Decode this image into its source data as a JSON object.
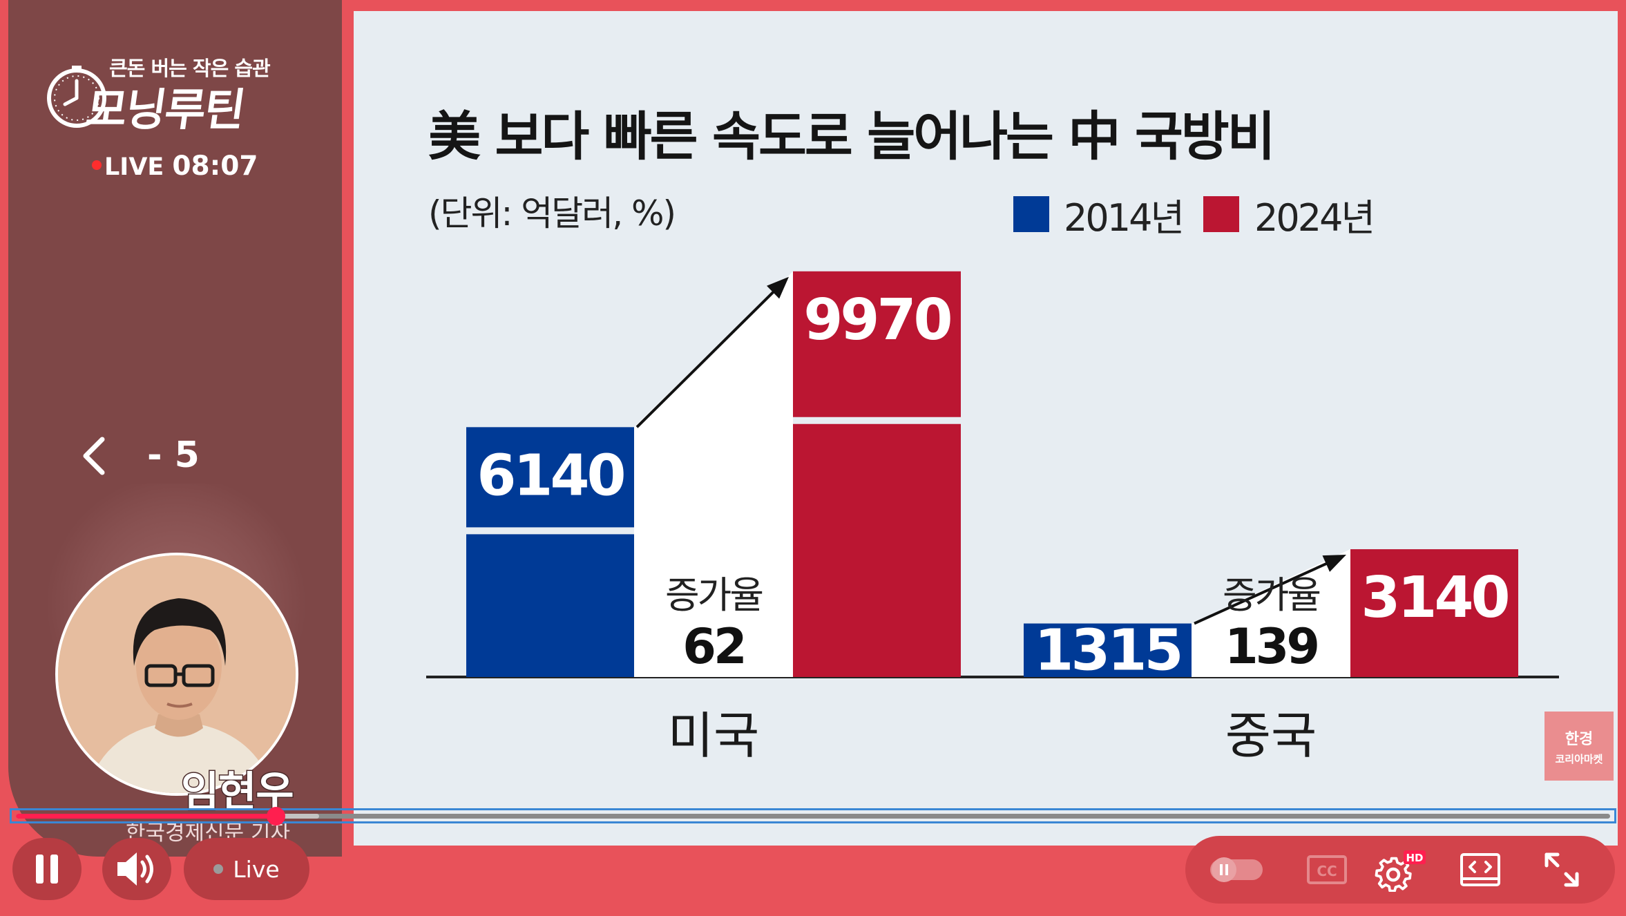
{
  "brand": {
    "tagline": "큰돈 버는 작은 습관",
    "show_title": "모닝루틴",
    "live_label": "LIVE",
    "live_time": "08:07"
  },
  "nav": {
    "back_icon": "chevron-left-icon",
    "page_indicator": "- 5"
  },
  "presenter": {
    "name": "임현우",
    "affiliation": "한국경제신문 기자"
  },
  "chart_data": {
    "type": "bar",
    "title": "美 보다 빠른 속도로 늘어나는 中 국방비",
    "subtitle": "(단위: 억달러, %)",
    "categories": [
      "미국",
      "중국"
    ],
    "series": [
      {
        "name": "2014년",
        "color": "#003a96",
        "values": [
          6140,
          1315
        ]
      },
      {
        "name": "2024년",
        "color": "#bb1632",
        "values": [
          9970,
          3140
        ]
      }
    ],
    "annotations": [
      {
        "category": "미국",
        "label": "증가율",
        "value": "62"
      },
      {
        "category": "중국",
        "label": "증가율",
        "value": "139"
      }
    ],
    "legend_position": "top-right",
    "grid": false
  },
  "badge": {
    "line1": "한경",
    "line2": "코리아마켓"
  },
  "player": {
    "progress_fraction": 0.163,
    "buffered_fraction": 0.19,
    "live_button_label": "Live",
    "hd_badge": "HD",
    "icons": [
      "pause-icon",
      "volume-icon",
      "autoplay-toggle-icon",
      "closed-captions-icon",
      "settings-icon",
      "embed-icon",
      "fullscreen-icon"
    ]
  },
  "colors": {
    "accent": "#e8525a",
    "panel": "#7e4747",
    "progress": "#ff1f4f",
    "bar_2014": "#003a96",
    "bar_2024": "#bb1632"
  }
}
